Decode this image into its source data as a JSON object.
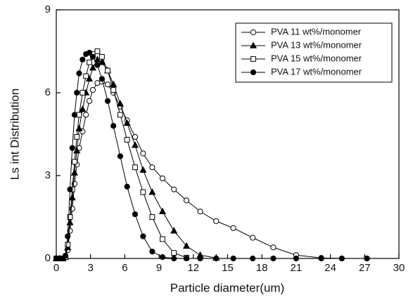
{
  "chart_data": {
    "type": "line",
    "xlabel": "Particle diameter(um)",
    "ylabel": "Ls int Distribution",
    "x": [
      0,
      0.3,
      0.6,
      0.8,
      1.0,
      1.2,
      1.4,
      1.6,
      1.8,
      2.0,
      2.3,
      2.6,
      2.9,
      3.2,
      3.6,
      4.0,
      4.5,
      5.0,
      5.6,
      6.2,
      6.9,
      7.6,
      8.4,
      9.3,
      10.3,
      11.4,
      12.6,
      14.0,
      15.5,
      17.2,
      19.0,
      21.0,
      23.2,
      25.0,
      27.2
    ],
    "series": [
      {
        "name": "PVA 11 wt%/monomer",
        "color": "#000000",
        "marker": "circle-open",
        "values": [
          0,
          0,
          0,
          0.05,
          0.3,
          1.0,
          1.8,
          2.7,
          3.4,
          4.0,
          4.6,
          5.2,
          5.7,
          6.1,
          6.35,
          6.4,
          6.3,
          6.0,
          5.5,
          5.0,
          4.4,
          3.8,
          3.3,
          2.9,
          2.5,
          2.1,
          1.7,
          1.35,
          1.1,
          0.75,
          0.4,
          0.12,
          0.02,
          0,
          0
        ]
      },
      {
        "name": "PVA 13 wt%/monomer",
        "color": "#000000",
        "marker": "triangle-filled",
        "values": [
          0,
          0,
          0,
          0.05,
          0.4,
          1.3,
          2.2,
          3.1,
          3.9,
          4.7,
          5.4,
          6.0,
          6.5,
          6.9,
          7.2,
          7.1,
          6.8,
          6.3,
          5.6,
          4.9,
          4.1,
          3.2,
          2.4,
          1.7,
          1.0,
          0.45,
          0.12,
          0.02,
          null,
          null,
          null,
          null,
          null,
          null,
          null
        ]
      },
      {
        "name": "PVA 15 wt%/monomer",
        "color": "#000000",
        "marker": "square-open",
        "values": [
          0,
          0,
          0,
          0.05,
          0.5,
          1.5,
          2.5,
          3.5,
          4.4,
          5.2,
          6.0,
          6.6,
          7.1,
          7.4,
          7.5,
          7.3,
          6.8,
          6.1,
          5.2,
          4.3,
          3.3,
          2.4,
          1.5,
          0.7,
          0.2,
          0.03,
          null,
          null,
          null,
          null,
          null,
          null,
          null,
          null,
          null
        ]
      },
      {
        "name": "PVA 17 wt%/monomer",
        "color": "#000000",
        "marker": "circle-filled",
        "values": [
          0,
          0,
          0,
          0.1,
          0.8,
          2.5,
          4.0,
          5.2,
          6.0,
          6.7,
          7.2,
          7.4,
          7.45,
          7.3,
          7.0,
          6.5,
          5.7,
          4.8,
          3.7,
          2.6,
          1.6,
          0.8,
          0.25,
          0.05,
          0,
          0,
          0,
          0,
          0,
          0,
          0,
          0,
          0,
          0,
          0
        ]
      }
    ],
    "xlim": [
      0,
      30
    ],
    "xticks": [
      0,
      3,
      6,
      9,
      12,
      15,
      18,
      21,
      24,
      27,
      30
    ],
    "ylim": [
      0,
      9
    ],
    "yticks": [
      0,
      3,
      6,
      9
    ],
    "legend": "top-right"
  }
}
